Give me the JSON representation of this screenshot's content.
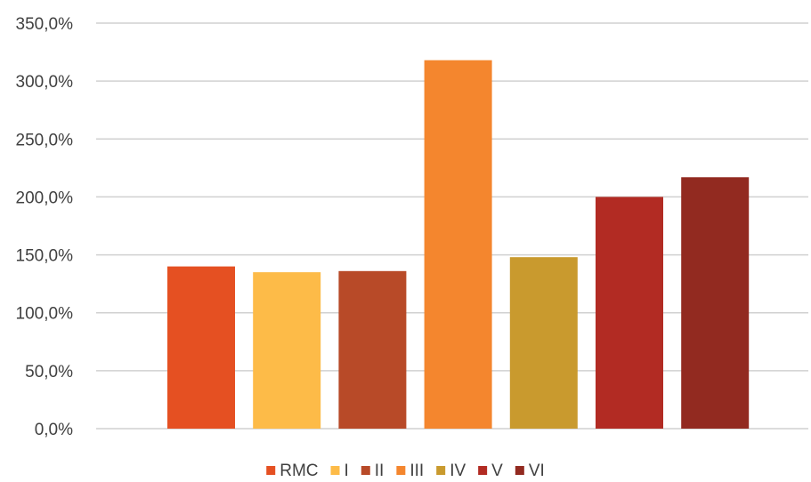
{
  "chart_data": {
    "type": "bar",
    "categories": [
      "RMC",
      "I",
      "II",
      "III",
      "IV",
      "V",
      "VI"
    ],
    "series": [
      {
        "name": "RMC",
        "value": 140.0,
        "color": "#E55022"
      },
      {
        "name": "I",
        "value": 135.0,
        "color": "#FDBB48"
      },
      {
        "name": "II",
        "value": 136.0,
        "color": "#B84A28"
      },
      {
        "name": "III",
        "value": 318.0,
        "color": "#F4862E"
      },
      {
        "name": "IV",
        "value": 148.0,
        "color": "#C99A2E"
      },
      {
        "name": "V",
        "value": 200.0,
        "color": "#B22B23"
      },
      {
        "name": "VI",
        "value": 217.0,
        "color": "#922A20"
      }
    ],
    "title": "",
    "xlabel": "",
    "ylabel": "",
    "ylim": [
      0,
      350
    ],
    "ytick_values": [
      0,
      50,
      100,
      150,
      200,
      250,
      300,
      350
    ],
    "ytick_labels": [
      "0,0%",
      "50,0%",
      "100,0%",
      "150,0%",
      "200,0%",
      "250,0%",
      "300,0%",
      "350,0%"
    ],
    "grid": true,
    "legend_position": "bottom"
  }
}
